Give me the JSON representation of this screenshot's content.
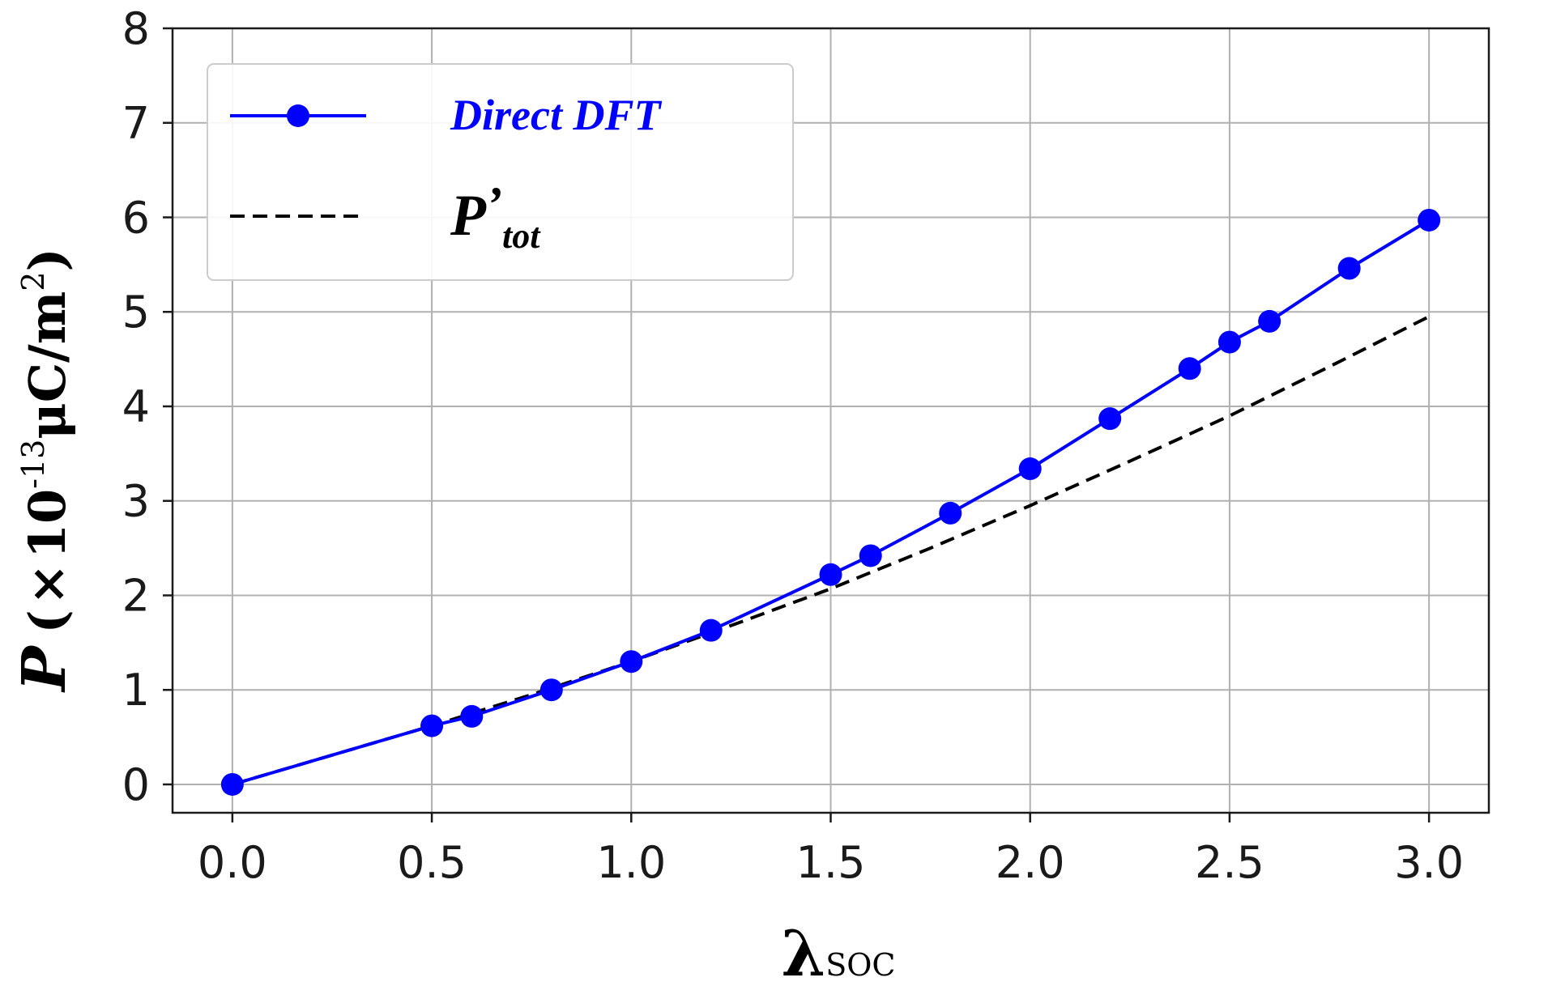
{
  "chart_data": {
    "type": "line",
    "xlabel_main": "λ",
    "xlabel_sub": "SOC",
    "ylabel_var": "P",
    "ylabel_open": "(",
    "ylabel_times": "×",
    "ylabel_base": "10",
    "ylabel_exp": "-13",
    "ylabel_unit": "μC/m",
    "ylabel_unit_exp": "2",
    "ylabel_close": ")",
    "xlim": [
      -0.15,
      3.15
    ],
    "ylim": [
      -0.3,
      8.0
    ],
    "xticks": [
      0.0,
      0.5,
      1.0,
      1.5,
      2.0,
      2.5,
      3.0
    ],
    "xtick_labels": [
      "0.0",
      "0.5",
      "1.0",
      "1.5",
      "2.0",
      "2.5",
      "3.0"
    ],
    "yticks": [
      0,
      1,
      2,
      3,
      4,
      5,
      6,
      7,
      8
    ],
    "ytick_labels": [
      "0",
      "1",
      "2",
      "3",
      "4",
      "5",
      "6",
      "7",
      "8"
    ],
    "grid": true,
    "legend_position": "upper-left",
    "series": [
      {
        "name": "Direct DFT",
        "style": "solid-markers",
        "color": "#0000ff",
        "x": [
          0.0,
          0.5,
          0.6,
          0.8,
          1.0,
          1.2,
          1.5,
          1.6,
          1.8,
          2.0,
          2.2,
          2.4,
          2.5,
          2.6,
          2.8,
          3.0
        ],
        "y": [
          0.0,
          0.62,
          0.72,
          1.0,
          1.3,
          1.63,
          2.22,
          2.42,
          2.87,
          3.34,
          3.87,
          4.4,
          4.68,
          4.9,
          5.46,
          5.97
        ]
      },
      {
        "name_main": "P",
        "name_prime": "’",
        "name_sub": "tot",
        "style": "dashed",
        "color": "#000000",
        "x": [
          0.0,
          0.25,
          0.5,
          0.75,
          1.0,
          1.25,
          1.5,
          1.75,
          2.0,
          2.25,
          2.5,
          2.75,
          3.0
        ],
        "y": [
          0.0,
          0.31,
          0.62,
          0.95,
          1.3,
          1.68,
          2.07,
          2.5,
          2.95,
          3.42,
          3.9,
          4.42,
          4.95
        ]
      }
    ]
  }
}
